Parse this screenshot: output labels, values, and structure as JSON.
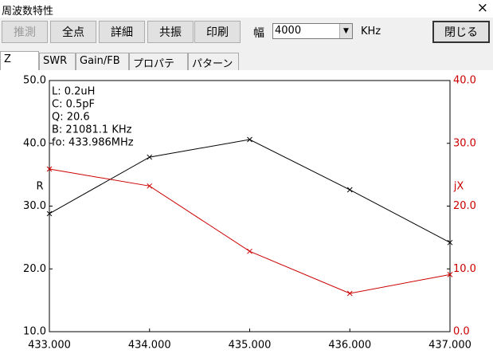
{
  "window": {
    "title": "周波数特性",
    "close_symbol": "×"
  },
  "toolbar": {
    "buttons": [
      "推測",
      "全点",
      "詳細",
      "共振",
      "印刷"
    ],
    "width_label": "幅",
    "width_value": "4000",
    "width_unit": "KHz",
    "close_button": "閉じる"
  },
  "tabs": [
    "Z",
    "SWR",
    "Gain/FB",
    "プロパティ",
    "パターン"
  ],
  "chart_data": {
    "type": "line",
    "annotations": [
      "L: 0.2uH",
      "C: 0.5pF",
      "Q: 20.6",
      "B: 21081.1 KHz",
      "fo: 433.986MHz"
    ],
    "y_label": "R",
    "y2_label": "jX",
    "x": [
      433,
      434,
      435,
      436,
      437
    ],
    "xlim": [
      433,
      437
    ],
    "xticks": [
      {
        "value": 433,
        "label": "433.000"
      },
      {
        "value": 434,
        "label": "434.000"
      },
      {
        "value": 435,
        "label": "435.000"
      },
      {
        "value": 436,
        "label": "436.000"
      },
      {
        "value": 437,
        "label": "437.000"
      }
    ],
    "ylim": [
      10,
      50
    ],
    "yticks": [
      {
        "value": 10,
        "label": "10.0"
      },
      {
        "value": 20,
        "label": "20.0"
      },
      {
        "value": 30,
        "label": "30.0"
      },
      {
        "value": 40,
        "label": "40.0"
      },
      {
        "value": 50,
        "label": "50.0"
      }
    ],
    "y2lim": [
      0,
      40
    ],
    "y2ticks": [
      {
        "value": 0,
        "label": "0.0"
      },
      {
        "value": 10,
        "label": "10.0"
      },
      {
        "value": 20,
        "label": "20.0"
      },
      {
        "value": 30,
        "label": "30.0"
      },
      {
        "value": 40,
        "label": "40.0"
      }
    ],
    "series": [
      {
        "color": "#000000",
        "values": [
          28.8,
          37.8,
          40.6,
          32.6,
          24.2
        ]
      },
      {
        "color": "#cc0000",
        "axis": "y2",
        "values": [
          25.9,
          23.2,
          12.8,
          6.1,
          9.1
        ]
      }
    ]
  }
}
